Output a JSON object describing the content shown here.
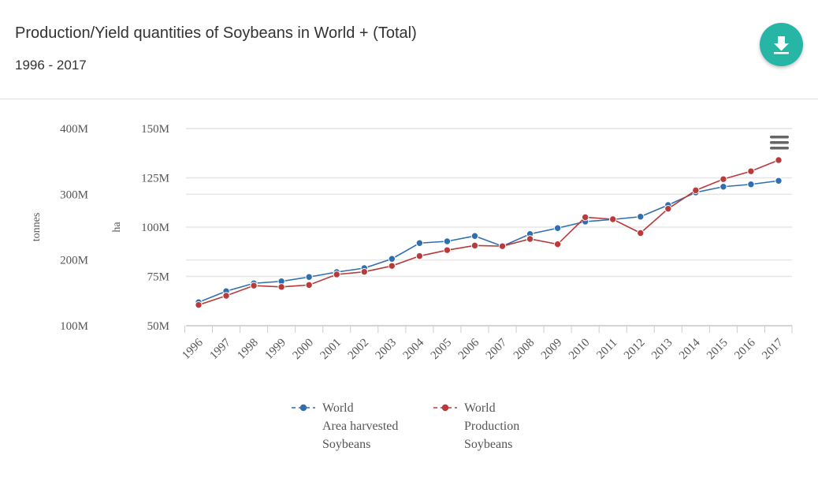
{
  "header": {
    "title": "Production/Yield quantities of Soybeans in World + (Total)",
    "subtitle": "1996 - 2017"
  },
  "icons": {
    "download": "download-icon",
    "menu": "hamburger-menu-icon"
  },
  "colors": {
    "accent": "#27b5a6",
    "area": "#2f6fb0",
    "production": "#b83a3a"
  },
  "chart_data": {
    "type": "line",
    "title": "Production/Yield quantities of Soybeans in World + (Total)",
    "x": [
      "1996",
      "1997",
      "1998",
      "1999",
      "2000",
      "2001",
      "2002",
      "2003",
      "2004",
      "2005",
      "2006",
      "2007",
      "2008",
      "2009",
      "2010",
      "2011",
      "2012",
      "2013",
      "2014",
      "2015",
      "2016",
      "2017"
    ],
    "axes": [
      {
        "label": "tonnes",
        "ylim": [
          100,
          400
        ],
        "ticks": [
          "100M",
          "200M",
          "300M",
          "400M"
        ]
      },
      {
        "label": "ha",
        "ylim": [
          50,
          150
        ],
        "ticks": [
          "50M",
          "75M",
          "100M",
          "125M",
          "150M"
        ]
      }
    ],
    "series": [
      {
        "name": "World Area harvested Soybeans",
        "legend": [
          "World",
          "Area harvested",
          "Soybeans"
        ],
        "axis": "ha",
        "unit": "M",
        "color": "#2f6fb0",
        "values": [
          61.9,
          67.5,
          71.5,
          72.5,
          74.7,
          77.2,
          79.2,
          83.9,
          91.9,
          92.8,
          95.5,
          90.3,
          96.5,
          99.5,
          102.8,
          103.9,
          105.3,
          111.2,
          117.6,
          120.5,
          121.7,
          123.5
        ]
      },
      {
        "name": "World Production Soybeans",
        "legend": [
          "World",
          "Production",
          "Soybeans"
        ],
        "axis": "tonnes",
        "unit": "M",
        "color": "#b83a3a",
        "values": [
          131.6,
          145.6,
          161,
          159,
          162,
          178,
          182,
          191,
          206,
          215,
          222,
          221,
          232,
          224,
          265,
          262,
          241,
          278,
          306,
          323,
          335,
          352
        ]
      }
    ],
    "grid": true,
    "legend_position": "bottom"
  }
}
